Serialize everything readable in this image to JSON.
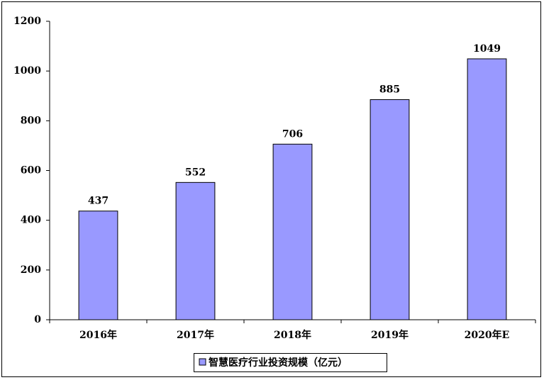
{
  "chart_data": {
    "type": "bar",
    "categories": [
      "2016年",
      "2017年",
      "2018年",
      "2019年",
      "2020年E"
    ],
    "series": [
      {
        "name": "智慧医疗行业投资规模（亿元）",
        "color": "#9999ff",
        "values": [
          437,
          552,
          706,
          885,
          1049
        ]
      }
    ],
    "ylim": [
      0,
      1200
    ],
    "yticks": [
      0,
      200,
      400,
      600,
      800,
      1000,
      1200
    ],
    "grid": false,
    "legend": "bottom",
    "data_labels": true
  }
}
